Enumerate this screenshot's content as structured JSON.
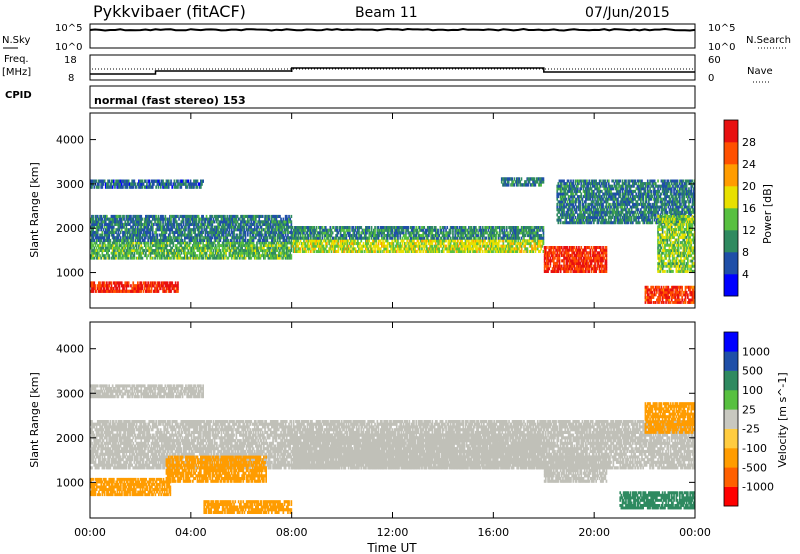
{
  "header": {
    "station": "Pykkvibaer (fitACF)",
    "beam": "Beam 11",
    "date": "07/Jun/2015"
  },
  "status_panels": {
    "nsky_label": "N.Sky",
    "nsky_ticks": [
      "10^5",
      "10^0"
    ],
    "nsearch_label": "N.Search",
    "nsearch_ticks": [
      "10^5",
      "10^0"
    ],
    "freq_label_line1": "Freq.",
    "freq_label_line2": "[MHz]",
    "freq_ticks": [
      "18",
      "8"
    ],
    "nave_label": "Nave",
    "nave_ticks": [
      "60",
      "0"
    ],
    "cpid_label": "CPID",
    "cpid_text": "normal (fast stereo) 153"
  },
  "colors": {
    "power_scale": [
      "#0000ff",
      "#1f4fa8",
      "#2f8a60",
      "#58c040",
      "#e8e000",
      "#ff9c00",
      "#ff5000",
      "#e81010"
    ],
    "velocity_scale": [
      "#ff0000",
      "#ff6000",
      "#ff9c00",
      "#ffcc40",
      "#c8c8c0",
      "#58c040",
      "#2f8a60",
      "#1f4fa8",
      "#0000ff"
    ],
    "ground_scatter": "#c0c0b8"
  },
  "chart_data": [
    {
      "type": "heatmap",
      "title": "Power",
      "xlabel": "",
      "ylabel": "Slant Range [km]",
      "x_ticks": [
        "00:00",
        "04:00",
        "08:00",
        "12:00",
        "16:00",
        "20:00",
        "00:00"
      ],
      "xlim_hours": [
        0,
        24
      ],
      "y_ticks": [
        1000,
        2000,
        3000,
        4000
      ],
      "ylim": [
        200,
        4600
      ],
      "colorbar_label": "Power [dB]",
      "colorbar_ticks": [
        4,
        8,
        12,
        16,
        20,
        24,
        28
      ],
      "colorbar_range": [
        0,
        30
      ],
      "bands": [
        {
          "t0": 0,
          "t1": 3.5,
          "r0": 550,
          "r1": 800,
          "value": 27
        },
        {
          "t0": 0,
          "t1": 8,
          "r0": 1300,
          "r1": 1700,
          "value": 12
        },
        {
          "t0": 0,
          "t1": 8,
          "r0": 1700,
          "r1": 2300,
          "value": 8
        },
        {
          "t0": 8,
          "t1": 18,
          "r0": 1450,
          "r1": 1750,
          "value": 16
        },
        {
          "t0": 8,
          "t1": 18,
          "r0": 1750,
          "r1": 2050,
          "value": 9
        },
        {
          "t0": 18,
          "t1": 20.5,
          "r0": 1000,
          "r1": 1600,
          "value": 27
        },
        {
          "t0": 0,
          "t1": 4.5,
          "r0": 2900,
          "r1": 3100,
          "value": 7
        },
        {
          "t0": 16.3,
          "t1": 18,
          "r0": 2950,
          "r1": 3150,
          "value": 8
        },
        {
          "t0": 18.5,
          "t1": 24,
          "r0": 2100,
          "r1": 3100,
          "value": 8
        },
        {
          "t0": 22,
          "t1": 24,
          "r0": 300,
          "r1": 700,
          "value": 26
        },
        {
          "t0": 22.5,
          "t1": 24,
          "r0": 1000,
          "r1": 2300,
          "value": 14
        }
      ]
    },
    {
      "type": "heatmap",
      "title": "Velocity",
      "xlabel": "Time UT",
      "ylabel": "Slant Range [km]",
      "x_ticks": [
        "00:00",
        "04:00",
        "08:00",
        "12:00",
        "16:00",
        "20:00",
        "00:00"
      ],
      "xlim_hours": [
        0,
        24
      ],
      "y_ticks": [
        1000,
        2000,
        3000,
        4000
      ],
      "ylim": [
        200,
        4600
      ],
      "colorbar_label": "Velocity [m s^-1]",
      "colorbar_ticks": [
        "1000",
        "500",
        "100",
        "25",
        "-25",
        "-100",
        "-500",
        "-1000"
      ],
      "bands": [
        {
          "t0": 0,
          "t1": 24,
          "r0": 1300,
          "r1": 2400,
          "value": "ground scatter"
        },
        {
          "t0": 0,
          "t1": 3.2,
          "r0": 700,
          "r1": 1100,
          "value": -150
        },
        {
          "t0": 3,
          "t1": 7,
          "r0": 1000,
          "r1": 1600,
          "value": -400
        },
        {
          "t0": 4.5,
          "t1": 8,
          "r0": 300,
          "r1": 600,
          "value": -200
        },
        {
          "t0": 8,
          "t1": 18,
          "r0": 1300,
          "r1": 2100,
          "value": "ground scatter"
        },
        {
          "t0": 18,
          "t1": 20.5,
          "r0": 1000,
          "r1": 1600,
          "value": "ground scatter"
        },
        {
          "t0": 21,
          "t1": 24,
          "r0": 400,
          "r1": 800,
          "value": 400
        },
        {
          "t0": 22,
          "t1": 24,
          "r0": 2100,
          "r1": 2800,
          "value": -300
        },
        {
          "t0": 0,
          "t1": 4.5,
          "r0": 2900,
          "r1": 3200,
          "value": "ground scatter"
        }
      ]
    }
  ]
}
